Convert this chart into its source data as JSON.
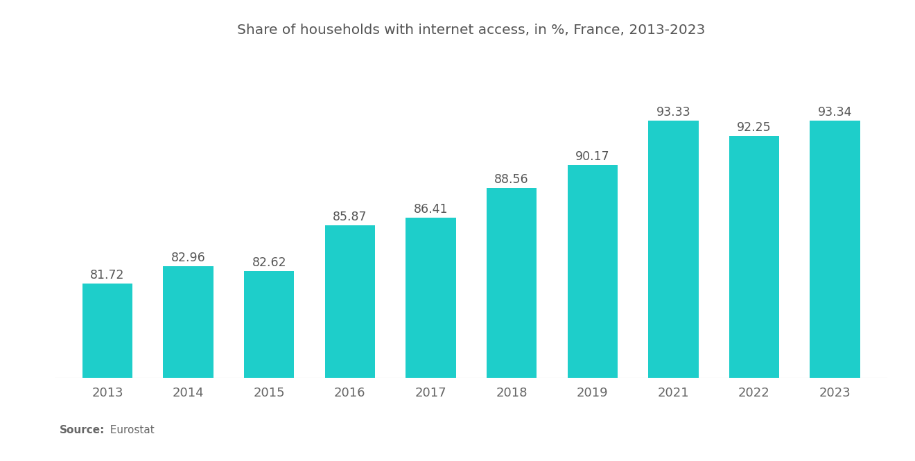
{
  "title": "Share of households with internet access, in %, France, 2013-2023",
  "categories": [
    "2013",
    "2014",
    "2015",
    "2016",
    "2017",
    "2018",
    "2019",
    "2021",
    "2022",
    "2023"
  ],
  "values": [
    81.72,
    82.96,
    82.62,
    85.87,
    86.41,
    88.56,
    90.17,
    93.33,
    92.25,
    93.34
  ],
  "bar_color": "#1ECECA",
  "background_color": "#ffffff",
  "title_fontsize": 14.5,
  "tick_fontsize": 13,
  "value_fontsize": 12.5,
  "source_bold": "Source:",
  "source_text": "  Eurostat",
  "ylim": [
    75,
    98
  ],
  "bar_width": 0.62,
  "title_color": "#555555",
  "tick_color": "#666666",
  "value_color": "#555555",
  "source_fontsize": 11
}
